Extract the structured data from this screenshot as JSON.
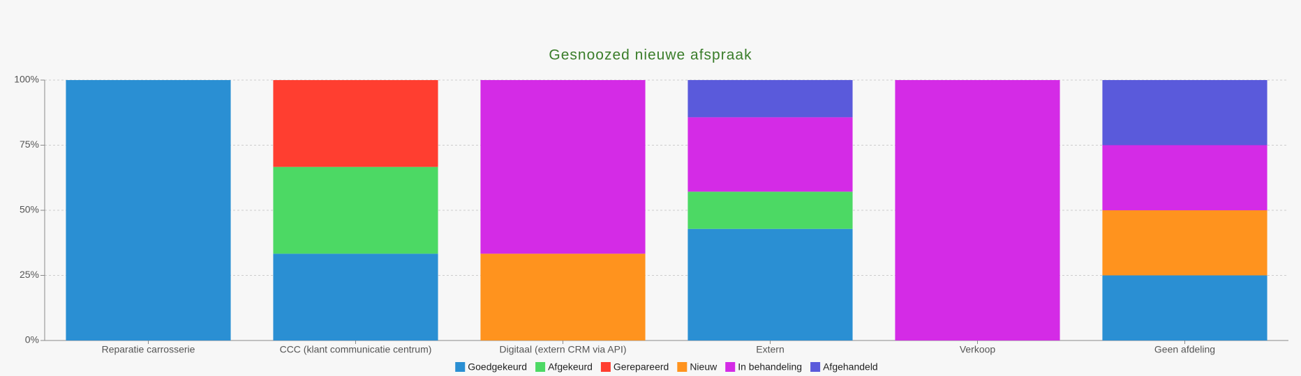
{
  "chart_data": {
    "type": "stacked_bar",
    "title": "Gesnoozed nieuwe afspraak",
    "categories": [
      "Reparatie carrosserie",
      "CCC (klant communicatie centrum)",
      "Digitaal (extern CRM via API)",
      "Extern",
      "Verkoop",
      "Geen afdeling"
    ],
    "series": [
      {
        "name": "Goedgekeurd",
        "color": "#2a8fd3",
        "values": [
          100,
          33.33,
          null,
          42.86,
          null,
          25
        ]
      },
      {
        "name": "Afgekeurd",
        "color": "#4cd964",
        "values": [
          null,
          33.33,
          null,
          14.29,
          null,
          null
        ]
      },
      {
        "name": "Gerepareerd",
        "color": "#ff3e30",
        "values": [
          null,
          33.33,
          null,
          null,
          null,
          null
        ]
      },
      {
        "name": "Nieuw",
        "color": "#ff931e",
        "values": [
          null,
          null,
          33.33,
          null,
          null,
          25
        ]
      },
      {
        "name": "In behandeling",
        "color": "#d42be6",
        "values": [
          null,
          null,
          66.67,
          28.57,
          100,
          25
        ]
      },
      {
        "name": "Afgehandeld",
        "color": "#5a5adb",
        "values": [
          null,
          null,
          null,
          14.29,
          null,
          25
        ]
      }
    ],
    "ylim": [
      0,
      100
    ],
    "yticks": [
      {
        "value": 0,
        "label": "0%"
      },
      {
        "value": 25,
        "label": "25%"
      },
      {
        "value": 50,
        "label": "50%"
      },
      {
        "value": 75,
        "label": "75%"
      },
      {
        "value": 100,
        "label": "100%"
      }
    ],
    "grid": true,
    "legend": "bottom"
  }
}
